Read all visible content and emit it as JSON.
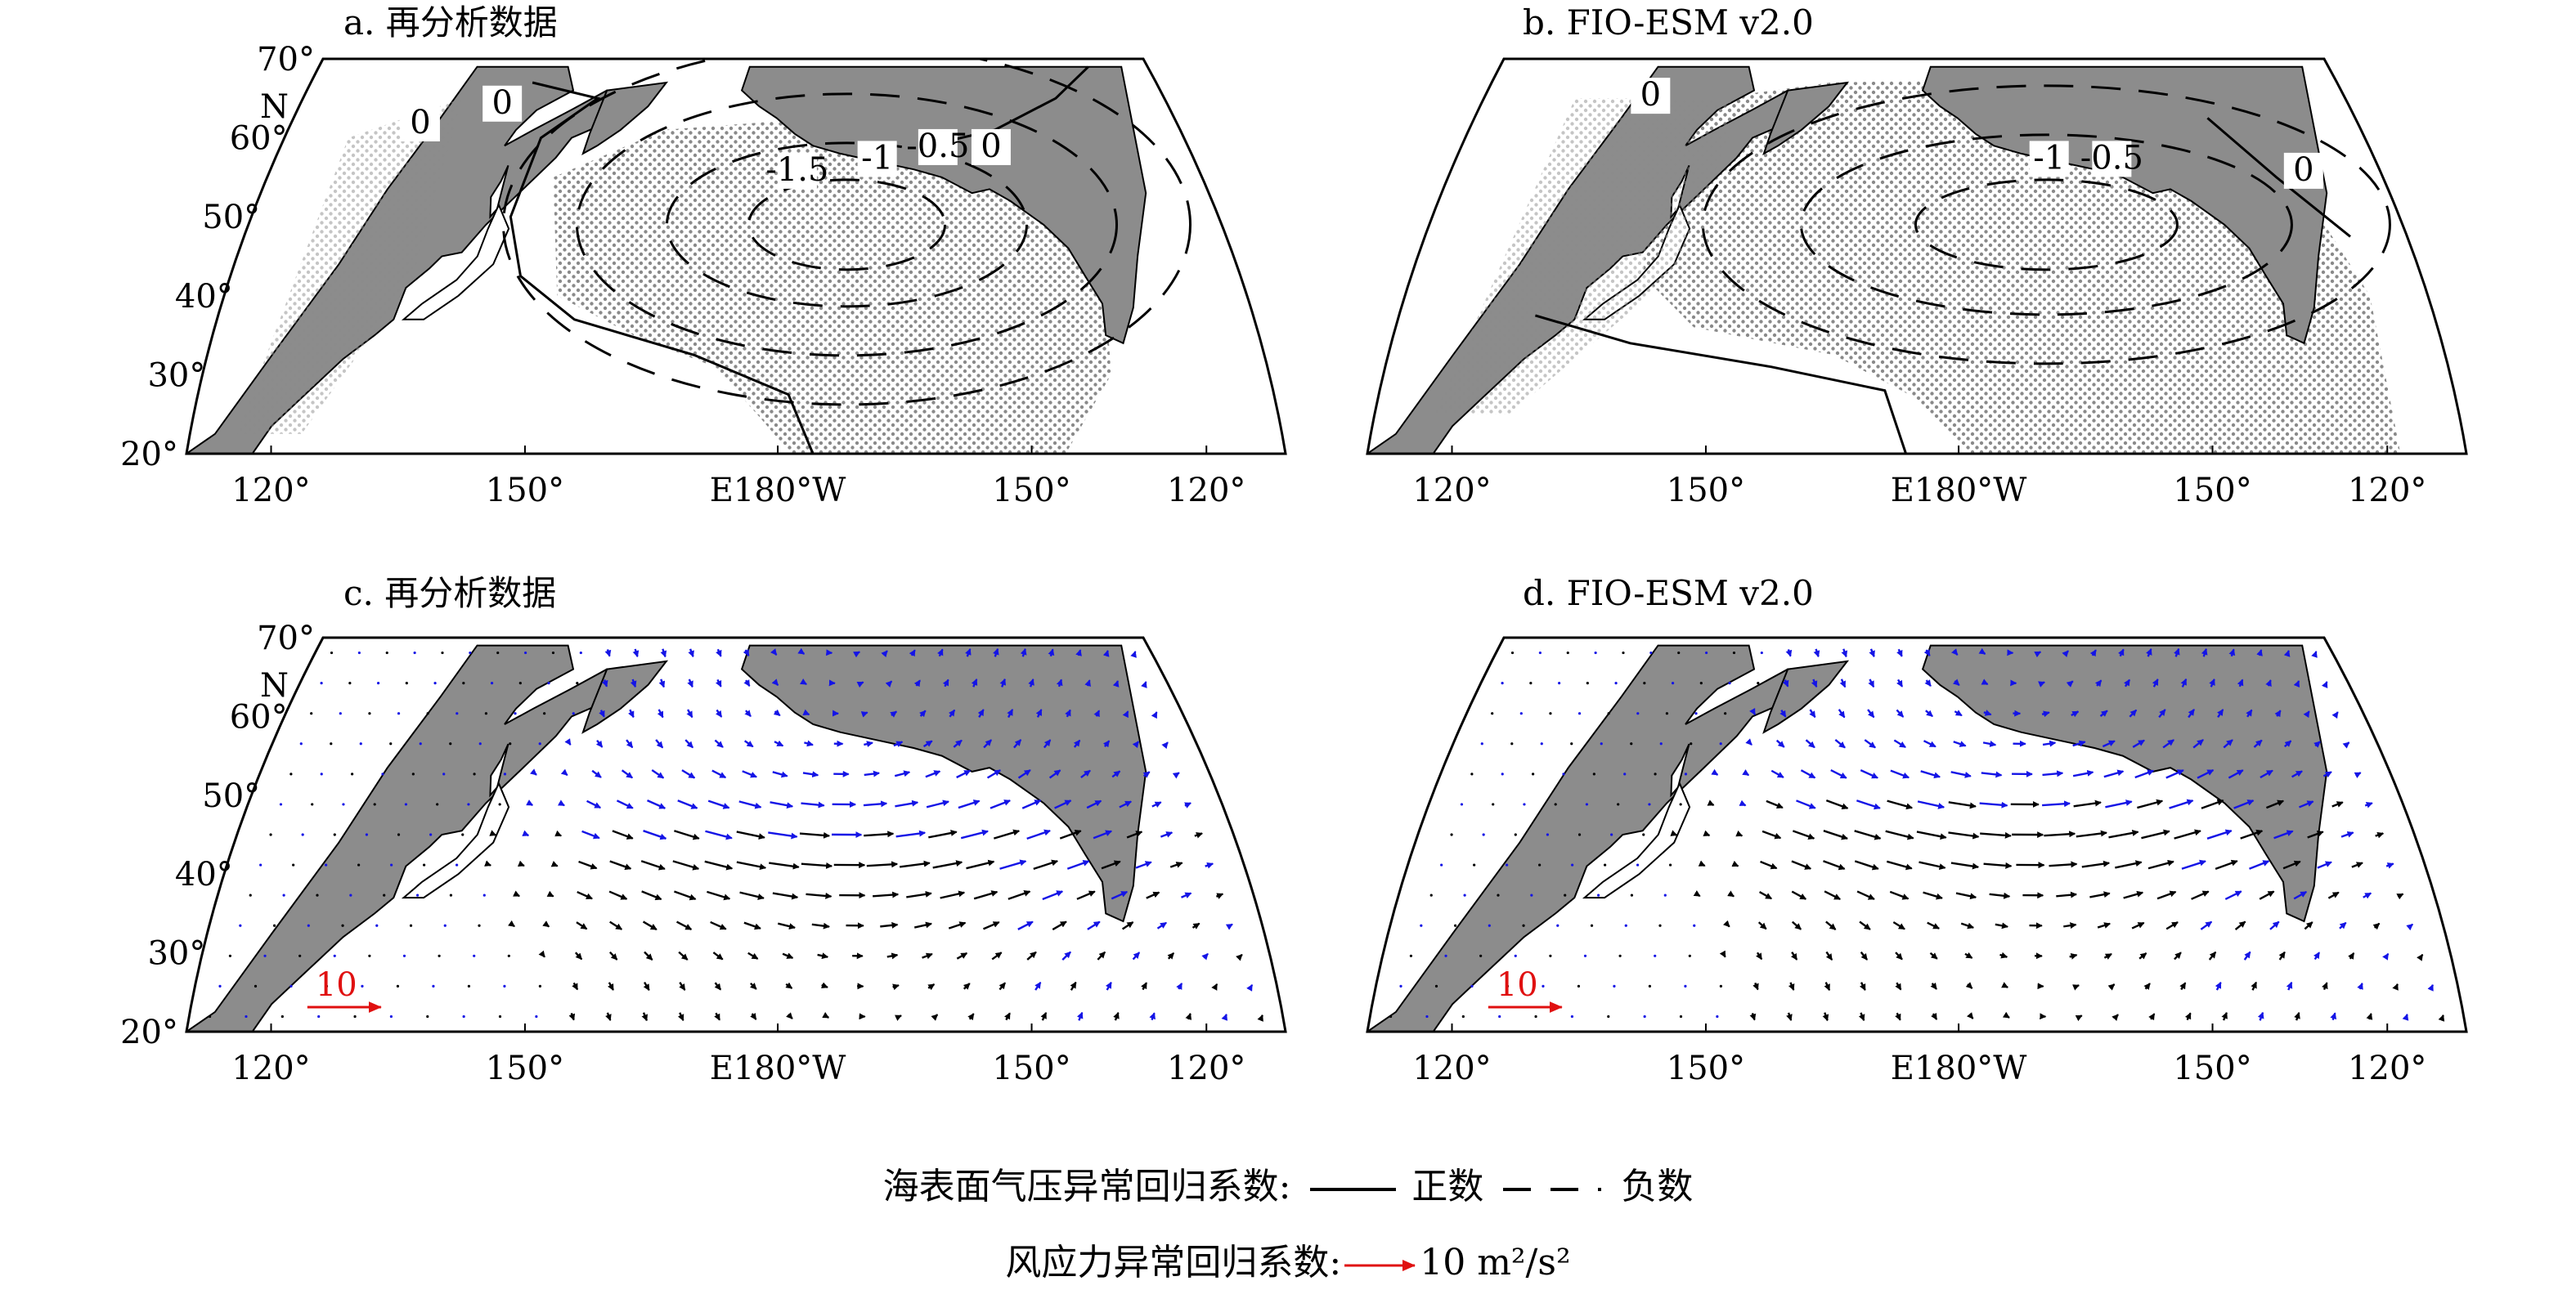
{
  "panels": [
    {
      "id": "a",
      "title": "a. 再分析数据",
      "type": "pressure",
      "contour_labels": [
        "0",
        "0",
        "-1.5",
        "-1",
        "-0.5",
        "0"
      ]
    },
    {
      "id": "b",
      "title": "b. FIO-ESM v2.0",
      "type": "pressure",
      "contour_labels": [
        "0",
        "-1",
        "-0.5",
        "0"
      ]
    },
    {
      "id": "c",
      "title": "c. 再分析数据",
      "type": "wind",
      "ref_label": "10"
    },
    {
      "id": "d",
      "title": "d. FIO-ESM v2.0",
      "type": "wind",
      "ref_label": "10"
    }
  ],
  "lat_ticks": [
    "70°",
    "60°",
    "50°",
    "40°",
    "30°",
    "20°"
  ],
  "lat_unit": "N",
  "lon_ticks": [
    "120°",
    "150°",
    "E180°W",
    "150°",
    "120°"
  ],
  "legend": {
    "slp_label": "海表面气压异常回归系数:",
    "positive_label": "正数",
    "negative_label": "负数",
    "wind_label": "风应力异常回归系数:",
    "wind_unit": "10 m²/s²"
  },
  "colors": {
    "land": "#8c8c8c",
    "stipple": "#8a8a8a",
    "wind_black": "#000000",
    "wind_blue": "#1414e6",
    "reference": "#e01010"
  }
}
